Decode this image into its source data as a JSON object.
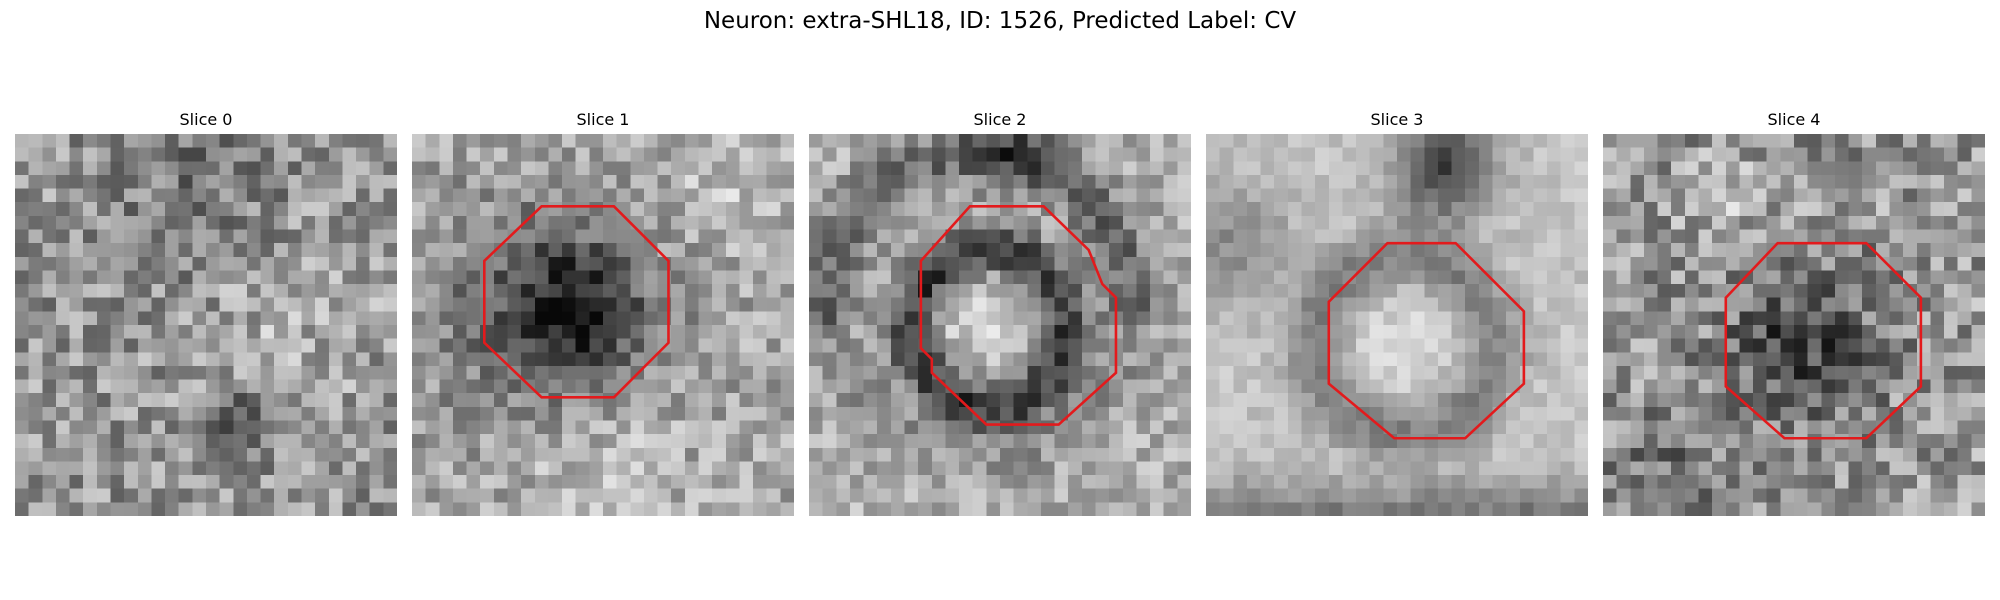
{
  "figure": {
    "title": "Neuron: extra-SHL18, ID: 1526, Predicted Label: CV"
  },
  "colors": {
    "outline": "#e31a1c",
    "background": "#ffffff"
  },
  "slices": [
    {
      "label": "Slice 0",
      "has_outline": false
    },
    {
      "label": "Slice 1",
      "has_outline": true
    },
    {
      "label": "Slice 2",
      "has_outline": true
    },
    {
      "label": "Slice 3",
      "has_outline": true
    },
    {
      "label": "Slice 4",
      "has_outline": true
    }
  ]
}
